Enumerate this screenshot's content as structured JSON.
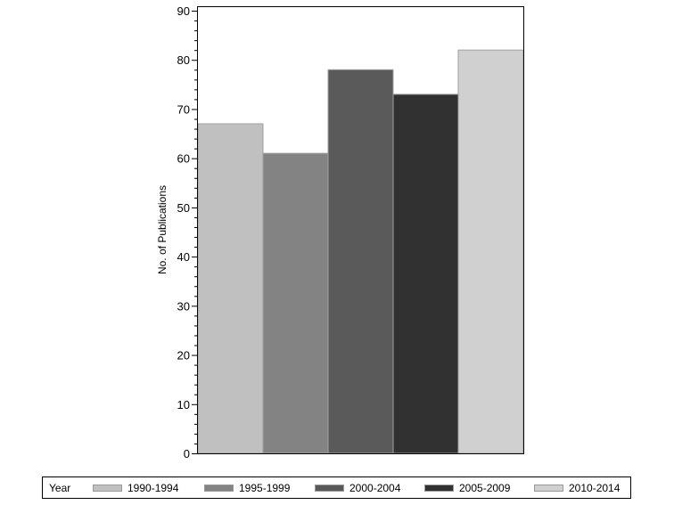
{
  "chart_data": {
    "type": "bar",
    "title": "",
    "xlabel": "",
    "ylabel": "No. of Publications",
    "ylim": [
      0,
      90
    ],
    "yticks": [
      0,
      10,
      20,
      30,
      40,
      50,
      60,
      70,
      80,
      90
    ],
    "grid": false,
    "legend_position": "bottom",
    "legend_title": "Year",
    "categories": [
      "1990-1994",
      "1995-1999",
      "2000-2004",
      "2005-2009",
      "2010-2014"
    ],
    "values": [
      67,
      61,
      78,
      73,
      82
    ],
    "colors": [
      "#c0c0c0",
      "#838383",
      "#5a5a5a",
      "#313131",
      "#d0d0d0"
    ]
  }
}
